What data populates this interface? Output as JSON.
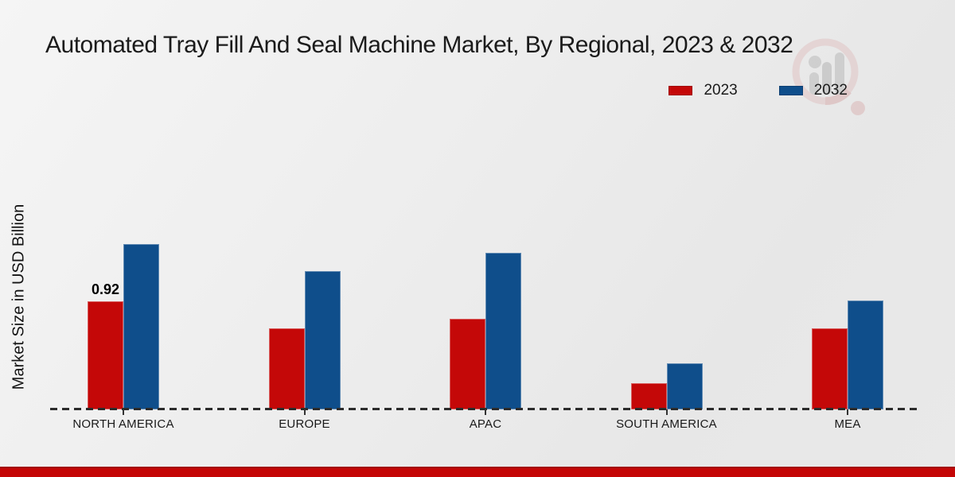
{
  "page": {
    "title": "Automated Tray Fill And Seal Machine Market, By Regional, 2023 & 2032",
    "y_axis_label": "Market Size in USD Billion",
    "background_color": "#ebebeb",
    "footer_bar_color": "#c40606",
    "watermark_icon": "market-research-magnifier-logo"
  },
  "legend": {
    "position": "top-right",
    "items": [
      {
        "label": "2023",
        "color": "#c40808"
      },
      {
        "label": "2032",
        "color": "#0f4e8b"
      }
    ]
  },
  "chart_data": {
    "type": "bar",
    "title": "Automated Tray Fill And Seal Machine Market, By Regional, 2023 & 2032",
    "xlabel": "",
    "ylabel": "Market Size in USD Billion",
    "categories": [
      "NORTH AMERICA",
      "EUROPE",
      "APAC",
      "SOUTH AMERICA",
      "MEA"
    ],
    "series": [
      {
        "name": "2023",
        "color": "#c40808",
        "values": [
          0.92,
          0.69,
          0.77,
          0.22,
          0.69
        ]
      },
      {
        "name": "2032",
        "color": "#0f4e8b",
        "values": [
          1.41,
          1.18,
          1.33,
          0.39,
          0.93
        ]
      }
    ],
    "ylim": [
      0,
      1.6
    ],
    "grid": false,
    "axis_style": "dashed-baseline-only",
    "legend_position": "top-right",
    "annotations": [
      {
        "series": "2023",
        "category": "NORTH AMERICA",
        "text": "0.92"
      }
    ]
  }
}
